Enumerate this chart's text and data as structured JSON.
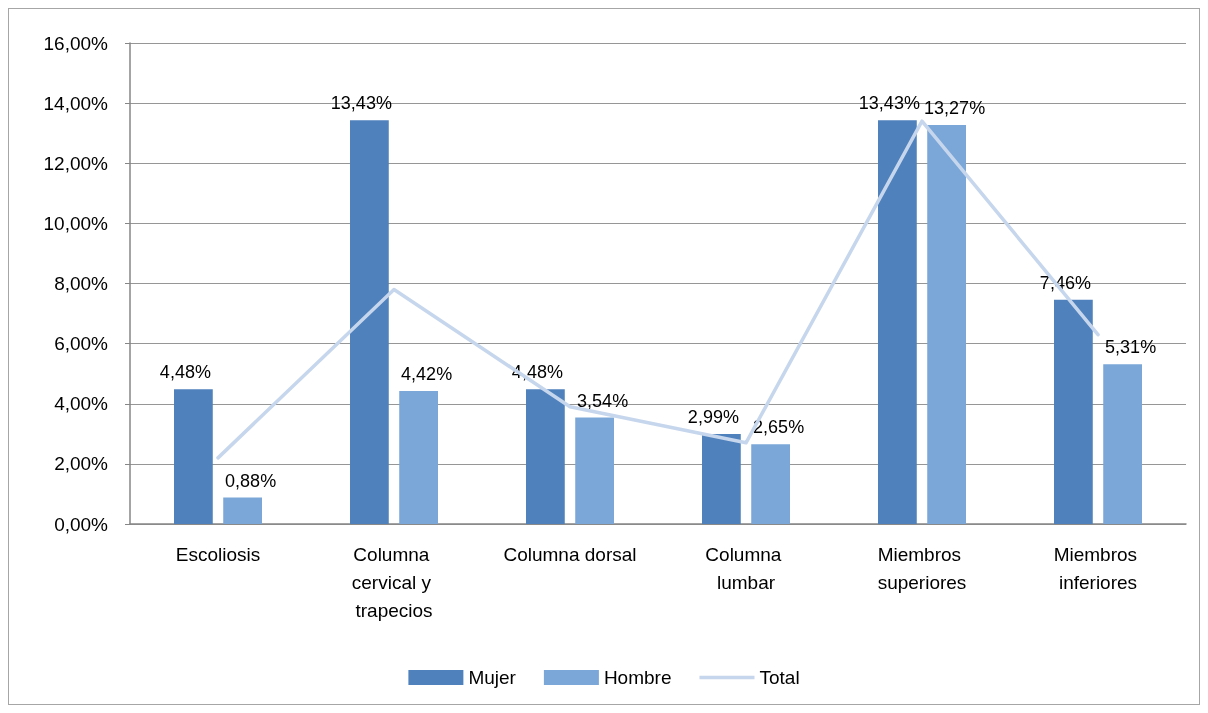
{
  "chart_data": {
    "type": "bar",
    "categories": [
      "Escoliosis",
      "Columna cervical y trapecios",
      "Columna dorsal",
      "Columna lumbar",
      "Miembros superiores",
      "Miembros inferiores"
    ],
    "series": [
      {
        "name": "Mujer",
        "color": "#4f81bd",
        "values": [
          4.48,
          13.43,
          4.48,
          2.99,
          13.43,
          7.46
        ],
        "value_labels": [
          "4,48%",
          "13,43%",
          "4,48%",
          "2,99%",
          "13,43%",
          "7,46%"
        ]
      },
      {
        "name": "Hombre",
        "color": "#7ba7d8",
        "values": [
          0.88,
          4.42,
          3.54,
          2.65,
          13.27,
          5.31
        ],
        "value_labels": [
          "0,88%",
          "4,42%",
          "3,54%",
          "2,65%",
          "13,27%",
          "5,31%"
        ]
      },
      {
        "name": "Total",
        "type": "line",
        "color": "#c6d6ec",
        "values": [
          2.2,
          7.8,
          3.9,
          2.7,
          13.4,
          6.3
        ]
      }
    ],
    "ylim": [
      0,
      16
    ],
    "yticks": [
      {
        "value": 0,
        "label": "0,00%"
      },
      {
        "value": 2,
        "label": "2,00%"
      },
      {
        "value": 4,
        "label": "4,00%"
      },
      {
        "value": 6,
        "label": "6,00%"
      },
      {
        "value": 8,
        "label": "8,00%"
      },
      {
        "value": 10,
        "label": "10,00%"
      },
      {
        "value": 12,
        "label": "12,00%"
      },
      {
        "value": 14,
        "label": "14,00%"
      },
      {
        "value": 16,
        "label": "16,00%"
      }
    ],
    "grid": "y",
    "legend": "bottom",
    "marker": "none",
    "line_style": "solid"
  }
}
